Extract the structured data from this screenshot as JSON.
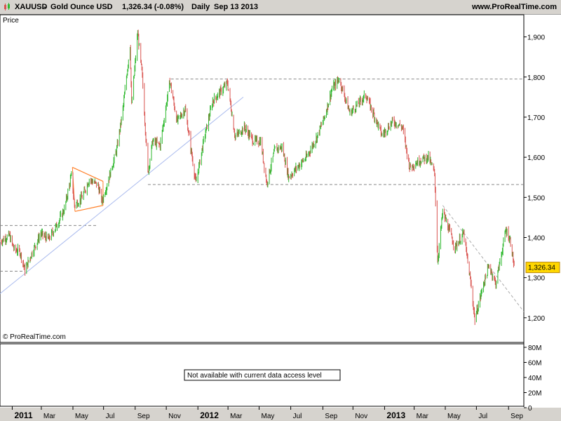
{
  "header": {
    "symbol": "XAUUSD",
    "instrument": "Gold Ounce USD",
    "quote": "1,326.34 (-0.08%)",
    "period": "Daily",
    "date": "Sep 13 2013",
    "site": "www.ProRealTime.com"
  },
  "price_label": "Price",
  "watermark": "© ProRealTime.com",
  "current_price_label": "1,326.34",
  "volume_message": "Not available with current data access level",
  "volume_ticks": [
    "80M",
    "60M",
    "40M",
    "20M",
    "0"
  ],
  "colors": {
    "up": "#2eb82e",
    "down": "#d9534f",
    "triangle": "#ff7f27",
    "trendline": "#aabbee",
    "dashed": "#888888",
    "price_tag": "#ffd700"
  },
  "chart_data": {
    "type": "line",
    "title": "XAUUSD - Gold Ounce USD",
    "xlabel": "",
    "ylabel": "Price",
    "ylim": [
      1170,
      1950
    ],
    "y_ticks": [
      1900,
      1800,
      1700,
      1600,
      1500,
      1400,
      1300,
      1200
    ],
    "y_tick_labels": [
      "1,900",
      "1,800",
      "1,700",
      "1,600",
      "1,500",
      "1,400",
      "1,300",
      "1,200"
    ],
    "x_ticks": [
      {
        "date": "2011-01-03",
        "label": "2011",
        "bold": true
      },
      {
        "date": "2011-03-01",
        "label": "Mar"
      },
      {
        "date": "2011-05-02",
        "label": "May"
      },
      {
        "date": "2011-07-01",
        "label": "Jul"
      },
      {
        "date": "2011-09-01",
        "label": "Sep"
      },
      {
        "date": "2011-11-01",
        "label": "Nov"
      },
      {
        "date": "2012-01-02",
        "label": "2012",
        "bold": true
      },
      {
        "date": "2012-03-01",
        "label": "Mar"
      },
      {
        "date": "2012-05-01",
        "label": "May"
      },
      {
        "date": "2012-07-02",
        "label": "Jul"
      },
      {
        "date": "2012-09-03",
        "label": "Sep"
      },
      {
        "date": "2012-11-01",
        "label": "Nov"
      },
      {
        "date": "2013-01-02",
        "label": "2013",
        "bold": true
      },
      {
        "date": "2013-03-01",
        "label": "Mar"
      },
      {
        "date": "2013-05-01",
        "label": "May"
      },
      {
        "date": "2013-07-01",
        "label": "Jul"
      },
      {
        "date": "2013-09-02",
        "label": "Sep"
      }
    ],
    "x_start": "2010-12-10",
    "x_end": "2013-10-02",
    "series": [
      {
        "values": [
          [
            "2010-12-10",
            1390
          ],
          [
            "2010-12-28",
            1405
          ],
          [
            "2011-01-07",
            1370
          ],
          [
            "2011-01-18",
            1365
          ],
          [
            "2011-01-28",
            1318
          ],
          [
            "2011-02-10",
            1360
          ],
          [
            "2011-02-28",
            1410
          ],
          [
            "2011-03-15",
            1395
          ],
          [
            "2011-03-31",
            1430
          ],
          [
            "2011-04-15",
            1470
          ],
          [
            "2011-04-29",
            1555
          ],
          [
            "2011-05-05",
            1480
          ],
          [
            "2011-05-20",
            1500
          ],
          [
            "2011-06-03",
            1545
          ],
          [
            "2011-06-20",
            1530
          ],
          [
            "2011-06-28",
            1490
          ],
          [
            "2011-07-12",
            1550
          ],
          [
            "2011-07-27",
            1620
          ],
          [
            "2011-08-08",
            1720
          ],
          [
            "2011-08-22",
            1880
          ],
          [
            "2011-08-25",
            1730
          ],
          [
            "2011-09-06",
            1910
          ],
          [
            "2011-09-15",
            1800
          ],
          [
            "2011-09-26",
            1560
          ],
          [
            "2011-10-05",
            1640
          ],
          [
            "2011-10-20",
            1630
          ],
          [
            "2011-11-08",
            1790
          ],
          [
            "2011-11-22",
            1690
          ],
          [
            "2011-12-08",
            1720
          ],
          [
            "2011-12-29",
            1535
          ],
          [
            "2012-01-13",
            1640
          ],
          [
            "2012-01-31",
            1740
          ],
          [
            "2012-02-29",
            1785
          ],
          [
            "2012-03-15",
            1650
          ],
          [
            "2012-04-02",
            1675
          ],
          [
            "2012-04-20",
            1640
          ],
          [
            "2012-05-04",
            1640
          ],
          [
            "2012-05-16",
            1535
          ],
          [
            "2012-06-01",
            1620
          ],
          [
            "2012-06-15",
            1625
          ],
          [
            "2012-06-28",
            1550
          ],
          [
            "2012-07-18",
            1580
          ],
          [
            "2012-08-02",
            1600
          ],
          [
            "2012-08-22",
            1650
          ],
          [
            "2012-09-06",
            1700
          ],
          [
            "2012-09-21",
            1770
          ],
          [
            "2012-10-05",
            1795
          ],
          [
            "2012-10-26",
            1710
          ],
          [
            "2012-11-09",
            1730
          ],
          [
            "2012-11-26",
            1755
          ],
          [
            "2012-12-14",
            1700
          ],
          [
            "2012-12-28",
            1655
          ],
          [
            "2013-01-18",
            1690
          ],
          [
            "2013-02-06",
            1675
          ],
          [
            "2013-02-20",
            1575
          ],
          [
            "2013-03-15",
            1595
          ],
          [
            "2013-03-29",
            1600
          ],
          [
            "2013-04-10",
            1560
          ],
          [
            "2013-04-16",
            1340
          ],
          [
            "2013-04-26",
            1465
          ],
          [
            "2013-05-20",
            1375
          ],
          [
            "2013-06-06",
            1410
          ],
          [
            "2013-06-20",
            1285
          ],
          [
            "2013-06-28",
            1195
          ],
          [
            "2013-07-15",
            1285
          ],
          [
            "2013-07-26",
            1330
          ],
          [
            "2013-08-08",
            1285
          ],
          [
            "2013-08-28",
            1420
          ],
          [
            "2013-09-06",
            1390
          ],
          [
            "2013-09-13",
            1326.34
          ]
        ]
      }
    ],
    "horizontal_levels": [
      {
        "price": 1795,
        "from": "2011-11-10",
        "to": "2013-10-02"
      },
      {
        "price": 1532,
        "from": "2011-09-26",
        "to": "2013-10-02"
      },
      {
        "price": 1430,
        "from": "2010-12-10",
        "to": "2011-06-20"
      },
      {
        "price": 1316,
        "from": "2010-12-10",
        "to": "2011-01-28"
      }
    ],
    "trendlines": [
      {
        "kind": "support",
        "from": [
          "2010-12-10",
          1260
        ],
        "to": [
          "2012-03-31",
          1750
        ]
      },
      {
        "kind": "resistance",
        "from": [
          "2013-04-26",
          1480
        ],
        "to": [
          "2013-10-02",
          1215
        ]
      }
    ],
    "triangle": {
      "upper": [
        [
          "2011-05-01",
          1575
        ],
        [
          "2011-06-30",
          1540
        ]
      ],
      "lower": [
        [
          "2011-05-06",
          1465
        ],
        [
          "2011-06-30",
          1480
        ]
      ]
    }
  }
}
